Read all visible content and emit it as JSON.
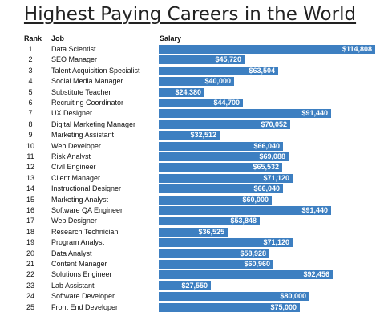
{
  "chart_data": {
    "type": "bar",
    "orientation": "horizontal",
    "title": "Highest Paying Careers in the World",
    "column_headers": {
      "rank": "Rank",
      "job": "Job",
      "salary": "Salary"
    },
    "xlim": [
      0,
      115000
    ],
    "grid": false,
    "legend": "none",
    "bar_color": "#3d7fc1",
    "rows": [
      {
        "rank": "1",
        "job": "Data Scientist",
        "value": 114808,
        "label": "$114,808"
      },
      {
        "rank": "2",
        "job": "SEO Manager",
        "value": 45720,
        "label": "$45,720"
      },
      {
        "rank": "3",
        "job": "Talent Acquisition Specialist",
        "value": 63504,
        "label": "$63,504"
      },
      {
        "rank": "4",
        "job": "Social Media Manager",
        "value": 40000,
        "label": "$40,000"
      },
      {
        "rank": "5",
        "job": "Substitute Teacher",
        "value": 24380,
        "label": "$24,380"
      },
      {
        "rank": "6",
        "job": "Recruiting Coordinator",
        "value": 44700,
        "label": "$44,700"
      },
      {
        "rank": "7",
        "job": "UX Designer",
        "value": 91440,
        "label": "$91,440"
      },
      {
        "rank": "8",
        "job": "Digital Marketing Manager",
        "value": 70052,
        "label": "$70,052"
      },
      {
        "rank": "9",
        "job": "Marketing Assistant",
        "value": 32512,
        "label": "$32,512"
      },
      {
        "rank": "10",
        "job": "Web Developer",
        "value": 66040,
        "label": "$66,040"
      },
      {
        "rank": "11",
        "job": "Risk Analyst",
        "value": 69088,
        "label": "$69,088"
      },
      {
        "rank": "12",
        "job": "Civil Engineer",
        "value": 65532,
        "label": "$65,532"
      },
      {
        "rank": "13",
        "job": "Client Manager",
        "value": 71120,
        "label": "$71,120"
      },
      {
        "rank": "14",
        "job": "Instructional Designer",
        "value": 66040,
        "label": "$66,040"
      },
      {
        "rank": "15",
        "job": "Marketing Analyst",
        "value": 60000,
        "label": "$60,000"
      },
      {
        "rank": "16",
        "job": "Software QA Engineer",
        "value": 91440,
        "label": "$91,440"
      },
      {
        "rank": "17",
        "job": "Web Designer",
        "value": 53848,
        "label": "$53,848"
      },
      {
        "rank": "18",
        "job": "Research Technician",
        "value": 36525,
        "label": "$36,525"
      },
      {
        "rank": "19",
        "job": "Program Analyst",
        "value": 71120,
        "label": "$71,120"
      },
      {
        "rank": "20",
        "job": "Data Analyst",
        "value": 58928,
        "label": "$58,928"
      },
      {
        "rank": "21",
        "job": "Content Manager",
        "value": 60960,
        "label": "$60,960"
      },
      {
        "rank": "22",
        "job": "Solutions Engineer",
        "value": 92456,
        "label": "$92,456"
      },
      {
        "rank": "23",
        "job": "Lab Assistant",
        "value": 27550,
        "label": "$27,550"
      },
      {
        "rank": "24",
        "job": "Software Developer",
        "value": 80000,
        "label": "$80,000"
      },
      {
        "rank": "25",
        "job": "Front End Developer",
        "value": 75000,
        "label": "$75,000"
      }
    ]
  }
}
